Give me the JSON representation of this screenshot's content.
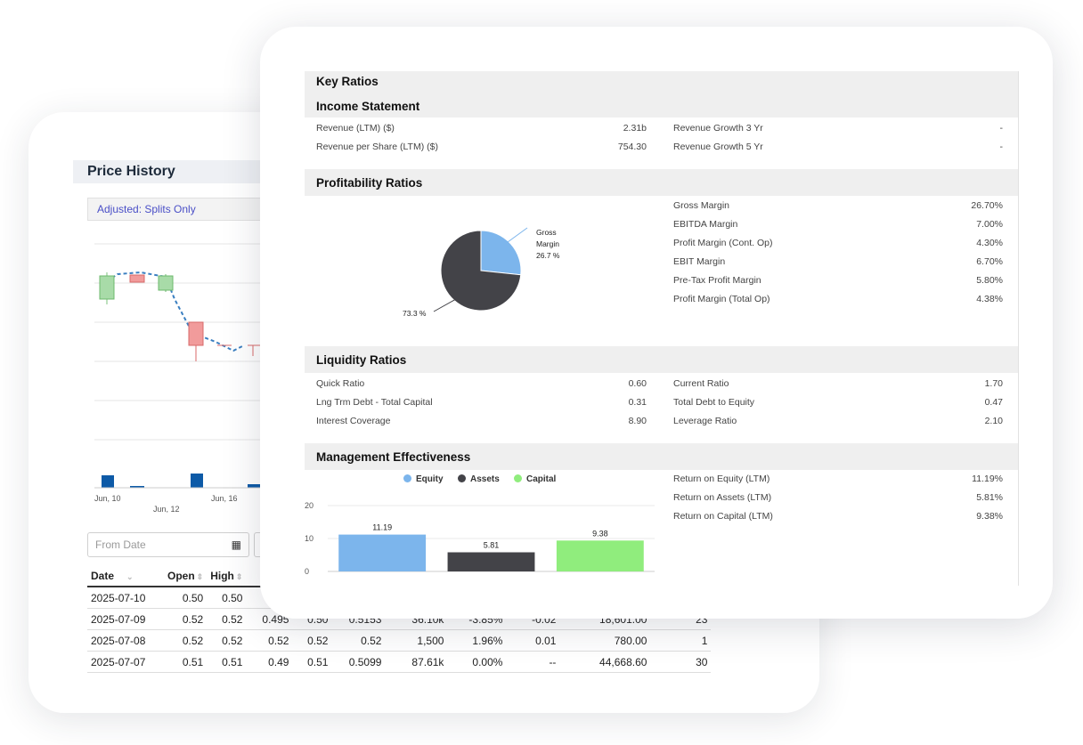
{
  "price_history": {
    "title": "Price History",
    "adjusted_label": "Adjusted: Splits Only",
    "x_ticks": [
      "Jun, 10",
      "Jun, 12",
      "Jun, 16"
    ],
    "from_date_placeholder": "From Date",
    "columns": [
      "Date",
      "Open",
      "High",
      "",
      "",
      "",
      "",
      "",
      "",
      "",
      ""
    ],
    "rows": [
      [
        "2025-07-10",
        "0.50",
        "0.50",
        "",
        "",
        "",
        "",
        "",
        "",
        "",
        ""
      ],
      [
        "2025-07-09",
        "0.52",
        "0.52",
        "0.495",
        "0.50",
        "0.5153",
        "36.10k",
        "-3.85%",
        "-0.02",
        "18,601.00",
        "23"
      ],
      [
        "2025-07-08",
        "0.52",
        "0.52",
        "0.52",
        "0.52",
        "0.52",
        "1,500",
        "1.96%",
        "0.01",
        "780.00",
        "1"
      ],
      [
        "2025-07-07",
        "0.51",
        "0.51",
        "0.49",
        "0.51",
        "0.5099",
        "87.61k",
        "0.00%",
        "--",
        "44,668.60",
        "30"
      ]
    ]
  },
  "key_ratios": {
    "title": "Key Ratios",
    "income_statement": {
      "title": "Income Statement",
      "rows": [
        {
          "label": "Revenue (LTM) ($)",
          "value": "2.31b",
          "label2": "Revenue Growth 3 Yr",
          "value2": "-"
        },
        {
          "label": "Revenue per Share (LTM) ($)",
          "value": "754.30",
          "label2": "Revenue Growth 5 Yr",
          "value2": "-"
        }
      ]
    },
    "profitability": {
      "title": "Profitability Ratios",
      "pie": {
        "gross_label_1": "Gross",
        "gross_label_2": "Margin",
        "gross_value_label": "26.7 %",
        "other_value_label": "73.3 %",
        "gross_color": "#7cb5ec",
        "other_color": "#434348"
      },
      "rows": [
        {
          "label": "Gross Margin",
          "value": "26.70%"
        },
        {
          "label": "EBITDA Margin",
          "value": "7.00%"
        },
        {
          "label": "Profit Margin (Cont. Op)",
          "value": "4.30%"
        },
        {
          "label": "EBIT Margin",
          "value": "6.70%"
        },
        {
          "label": "Pre-Tax Profit Margin",
          "value": "5.80%"
        },
        {
          "label": "Profit Margin (Total Op)",
          "value": "4.38%"
        }
      ]
    },
    "liquidity": {
      "title": "Liquidity Ratios",
      "rows": [
        {
          "label": "Quick Ratio",
          "value": "0.60",
          "label2": "Current Ratio",
          "value2": "1.70"
        },
        {
          "label": "Lng Trm Debt - Total Capital",
          "value": "0.31",
          "label2": "Total Debt to Equity",
          "value2": "0.47"
        },
        {
          "label": "Interest Coverage",
          "value": "8.90",
          "label2": "Leverage Ratio",
          "value2": "2.10"
        }
      ]
    },
    "management": {
      "title": "Management Effectiveness",
      "legend": [
        {
          "name": "Equity",
          "color": "#7cb5ec"
        },
        {
          "name": "Assets",
          "color": "#434348"
        },
        {
          "name": "Capital",
          "color": "#90ed7d"
        }
      ],
      "rows": [
        {
          "label": "Return on Equity (LTM)",
          "value": "11.19%"
        },
        {
          "label": "Return on Assets (LTM)",
          "value": "5.81%"
        },
        {
          "label": "Return on Capital (LTM)",
          "value": "9.38%"
        }
      ]
    }
  },
  "chart_data": [
    {
      "type": "pie",
      "labels": [
        "Gross Margin",
        ""
      ],
      "values": [
        26.7,
        73.3
      ],
      "colors": [
        "#7cb5ec",
        "#434348"
      ]
    },
    {
      "type": "bar",
      "categories": [
        "Equity",
        "Assets",
        "Capital"
      ],
      "values": [
        11.19,
        5.81,
        9.38
      ],
      "data_labels": [
        "11.19",
        "5.81",
        "9.38"
      ],
      "colors": [
        "#7cb5ec",
        "#434348",
        "#90ed7d"
      ],
      "ylim": [
        0,
        20
      ],
      "y_ticks": [
        "0",
        "10",
        "20"
      ],
      "legend": "top"
    }
  ]
}
